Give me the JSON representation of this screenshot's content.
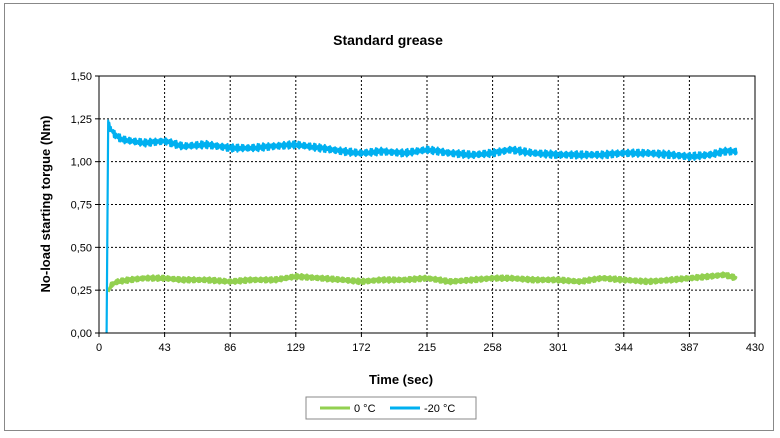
{
  "chart_data": {
    "type": "line",
    "title": "Standard grease",
    "xlabel": "Time (sec)",
    "ylabel": "No-load starting torgue (Nm)",
    "xlim": [
      0,
      430
    ],
    "ylim": [
      0,
      1.5
    ],
    "x_ticks": [
      "0",
      "43",
      "86",
      "129",
      "172",
      "215",
      "258",
      "301",
      "344",
      "387",
      "430"
    ],
    "y_ticks": [
      "0,00",
      "0,25",
      "0,50",
      "0,75",
      "1,00",
      "1,25",
      "1,50"
    ],
    "grid": true,
    "legend_position": "bottom-center",
    "series": [
      {
        "name": "0 °C",
        "color": "#92d050",
        "x": [
          6,
          8,
          12,
          20,
          30,
          43,
          55,
          70,
          86,
          100,
          115,
          129,
          145,
          160,
          172,
          185,
          200,
          215,
          230,
          245,
          258,
          270,
          285,
          301,
          315,
          330,
          344,
          360,
          375,
          387,
          400,
          410,
          418
        ],
        "y": [
          0.24,
          0.28,
          0.3,
          0.31,
          0.32,
          0.32,
          0.31,
          0.31,
          0.3,
          0.31,
          0.31,
          0.33,
          0.32,
          0.31,
          0.3,
          0.31,
          0.31,
          0.32,
          0.3,
          0.31,
          0.32,
          0.32,
          0.31,
          0.31,
          0.3,
          0.32,
          0.31,
          0.3,
          0.31,
          0.32,
          0.33,
          0.34,
          0.32
        ]
      },
      {
        "name": "-20 °C",
        "color": "#00b0f0",
        "x": [
          5,
          6,
          7,
          10,
          15,
          22,
          30,
          43,
          55,
          70,
          86,
          100,
          115,
          129,
          145,
          160,
          172,
          185,
          200,
          215,
          230,
          245,
          258,
          270,
          285,
          301,
          315,
          330,
          344,
          360,
          375,
          387,
          400,
          410,
          418
        ],
        "y": [
          0.0,
          1.23,
          1.2,
          1.16,
          1.13,
          1.12,
          1.11,
          1.12,
          1.09,
          1.1,
          1.08,
          1.08,
          1.09,
          1.1,
          1.08,
          1.06,
          1.05,
          1.06,
          1.05,
          1.07,
          1.05,
          1.04,
          1.05,
          1.07,
          1.05,
          1.04,
          1.04,
          1.04,
          1.05,
          1.05,
          1.04,
          1.03,
          1.04,
          1.06,
          1.06
        ]
      }
    ]
  }
}
